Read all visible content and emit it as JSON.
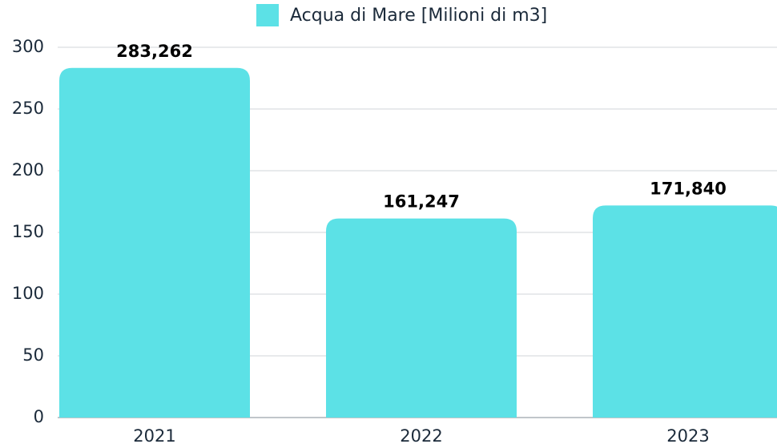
{
  "chart_data": {
    "type": "bar",
    "categories": [
      "2021",
      "2022",
      "2023"
    ],
    "series": [
      {
        "name": "Acqua di Mare [Milioni di m3]",
        "color": "#5ce1e6",
        "values": [
          283.262,
          161.247,
          171.84
        ],
        "value_labels": [
          "283,262",
          "161,247",
          "171,840"
        ]
      }
    ],
    "ylim": [
      0,
      300
    ],
    "yticks": [
      0,
      50,
      100,
      150,
      200,
      250,
      300
    ],
    "grid": true
  }
}
